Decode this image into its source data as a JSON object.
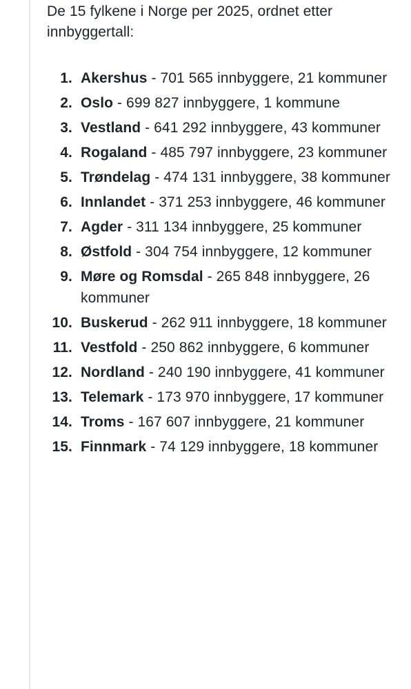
{
  "intro": "De 15 fylkene i Norge per 2025, ordnet etter innbyggertall:",
  "counties": [
    {
      "number": "1.",
      "name": "Akershus",
      "detail": " - 701 565 innbyggere, 21 kommuner"
    },
    {
      "number": "2.",
      "name": "Oslo",
      "detail": " - 699 827 innbyggere, 1 kommune"
    },
    {
      "number": "3.",
      "name": "Vestland",
      "detail": " - 641 292 innbyggere, 43 kommuner"
    },
    {
      "number": "4.",
      "name": "Rogaland",
      "detail": " - 485 797 innbyggere, 23 kommuner"
    },
    {
      "number": "5.",
      "name": "Trøndelag",
      "detail": " - 474 131 innbyggere, 38 kommuner"
    },
    {
      "number": "6.",
      "name": "Innlandet",
      "detail": " - 371 253 innbyggere, 46 kommuner"
    },
    {
      "number": "7.",
      "name": "Agder",
      "detail": " - 311 134 innbyggere, 25 kommuner"
    },
    {
      "number": "8.",
      "name": "Østfold",
      "detail": " - 304 754 innbyggere, 12 kommuner"
    },
    {
      "number": "9.",
      "name": "Møre og Romsdal",
      "detail": " - 265 848 innbyggere, 26 kommuner"
    },
    {
      "number": "10.",
      "name": "Buskerud",
      "detail": " - 262 911 innbyggere, 18 kommuner"
    },
    {
      "number": "11.",
      "name": "Vestfold",
      "detail": " - 250 862 innbyggere, 6 kommuner"
    },
    {
      "number": "12.",
      "name": "Nordland",
      "detail": " - 240 190 innbyggere, 41 kommuner"
    },
    {
      "number": "13.",
      "name": "Telemark",
      "detail": " - 173 970 innbyggere, 17 kommuner"
    },
    {
      "number": "14.",
      "name": "Troms",
      "detail": " - 167 607 innbyggere, 21 kommuner"
    },
    {
      "number": "15.",
      "name": "Finnmark",
      "detail": " - 74 129 innbyggere, 18 kommuner"
    }
  ]
}
